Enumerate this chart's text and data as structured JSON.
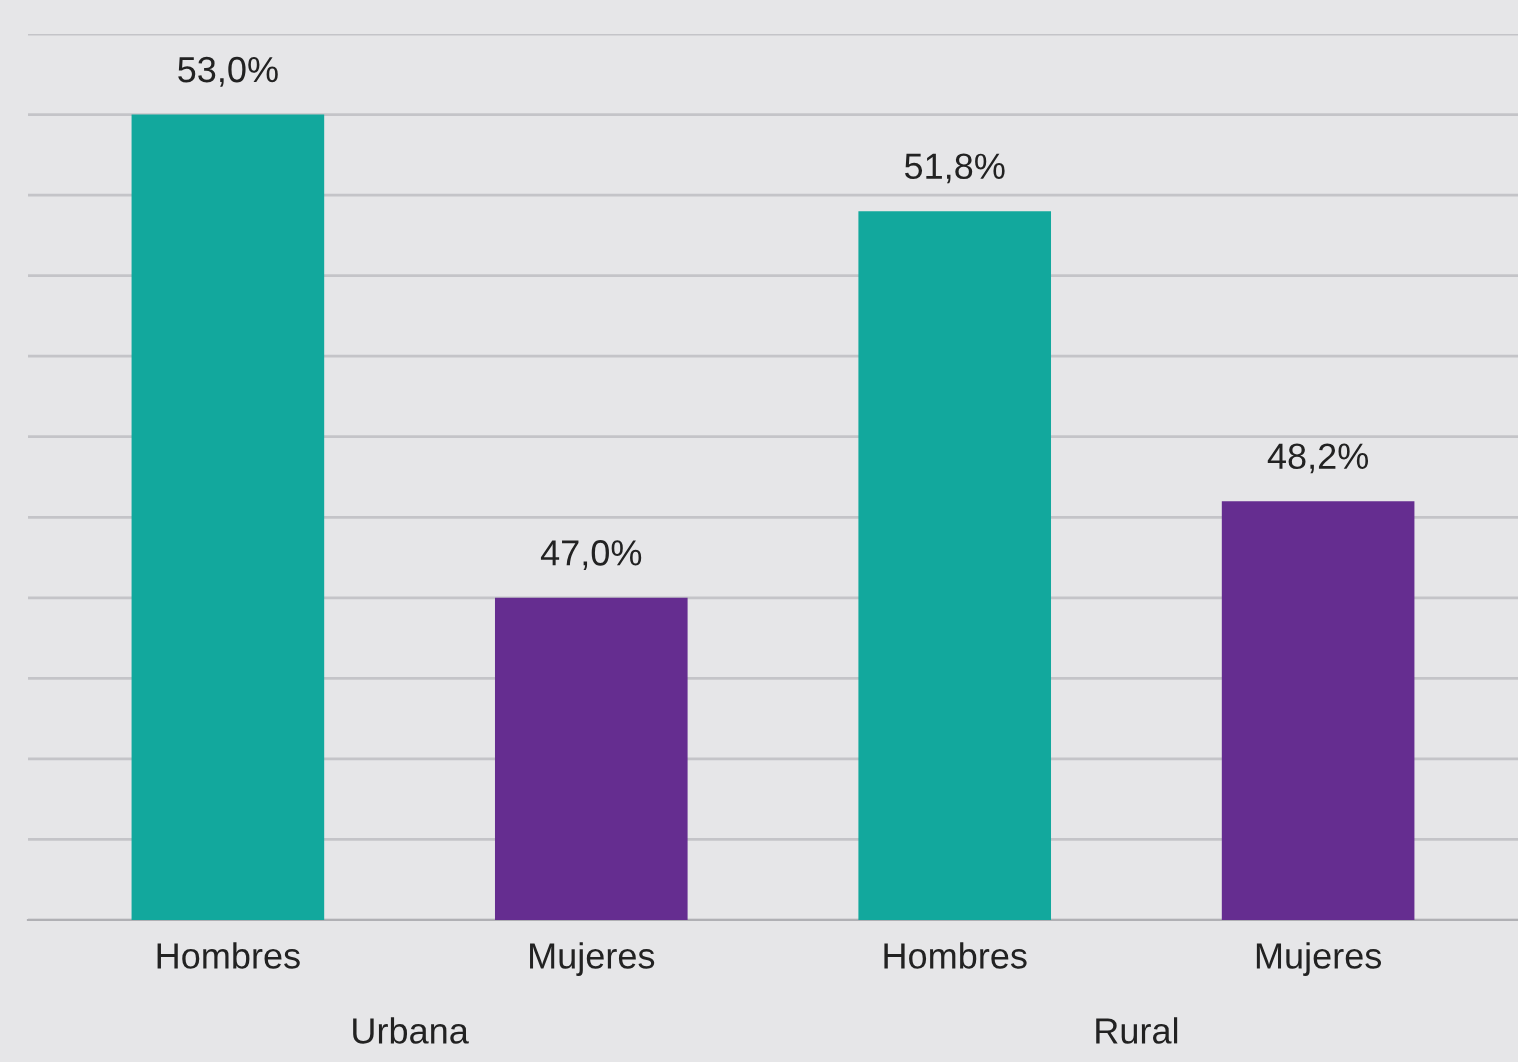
{
  "chart_data": {
    "type": "bar",
    "categories": [
      "Hombres",
      "Mujeres",
      "Hombres",
      "Mujeres"
    ],
    "values": [
      53.0,
      47.0,
      51.8,
      48.2
    ],
    "colors": [
      "#12a89d",
      "#652d90",
      "#12a89d",
      "#652d90"
    ],
    "value_labels": [
      "53,0%",
      "47,0%",
      "51,8%",
      "48,2%"
    ],
    "annotations": [
      "Urbana",
      "Rural"
    ],
    "ylim": [
      43,
      54
    ],
    "yticks": [
      {
        "value": 43,
        "label": null
      },
      {
        "value": 44,
        "label": null
      },
      {
        "value": 45,
        "label": null
      },
      {
        "value": 46,
        "label": null
      },
      {
        "value": 47,
        "label": null
      },
      {
        "value": 48,
        "label": null
      },
      {
        "value": 49,
        "label": null
      },
      {
        "value": 50,
        "label": null
      },
      {
        "value": 51,
        "label": null
      },
      {
        "value": 52,
        "label": null
      },
      {
        "value": 53,
        "label": null
      },
      {
        "value": 54,
        "label": null
      }
    ],
    "tick_labels": "x",
    "grid": "y",
    "legend": false
  }
}
